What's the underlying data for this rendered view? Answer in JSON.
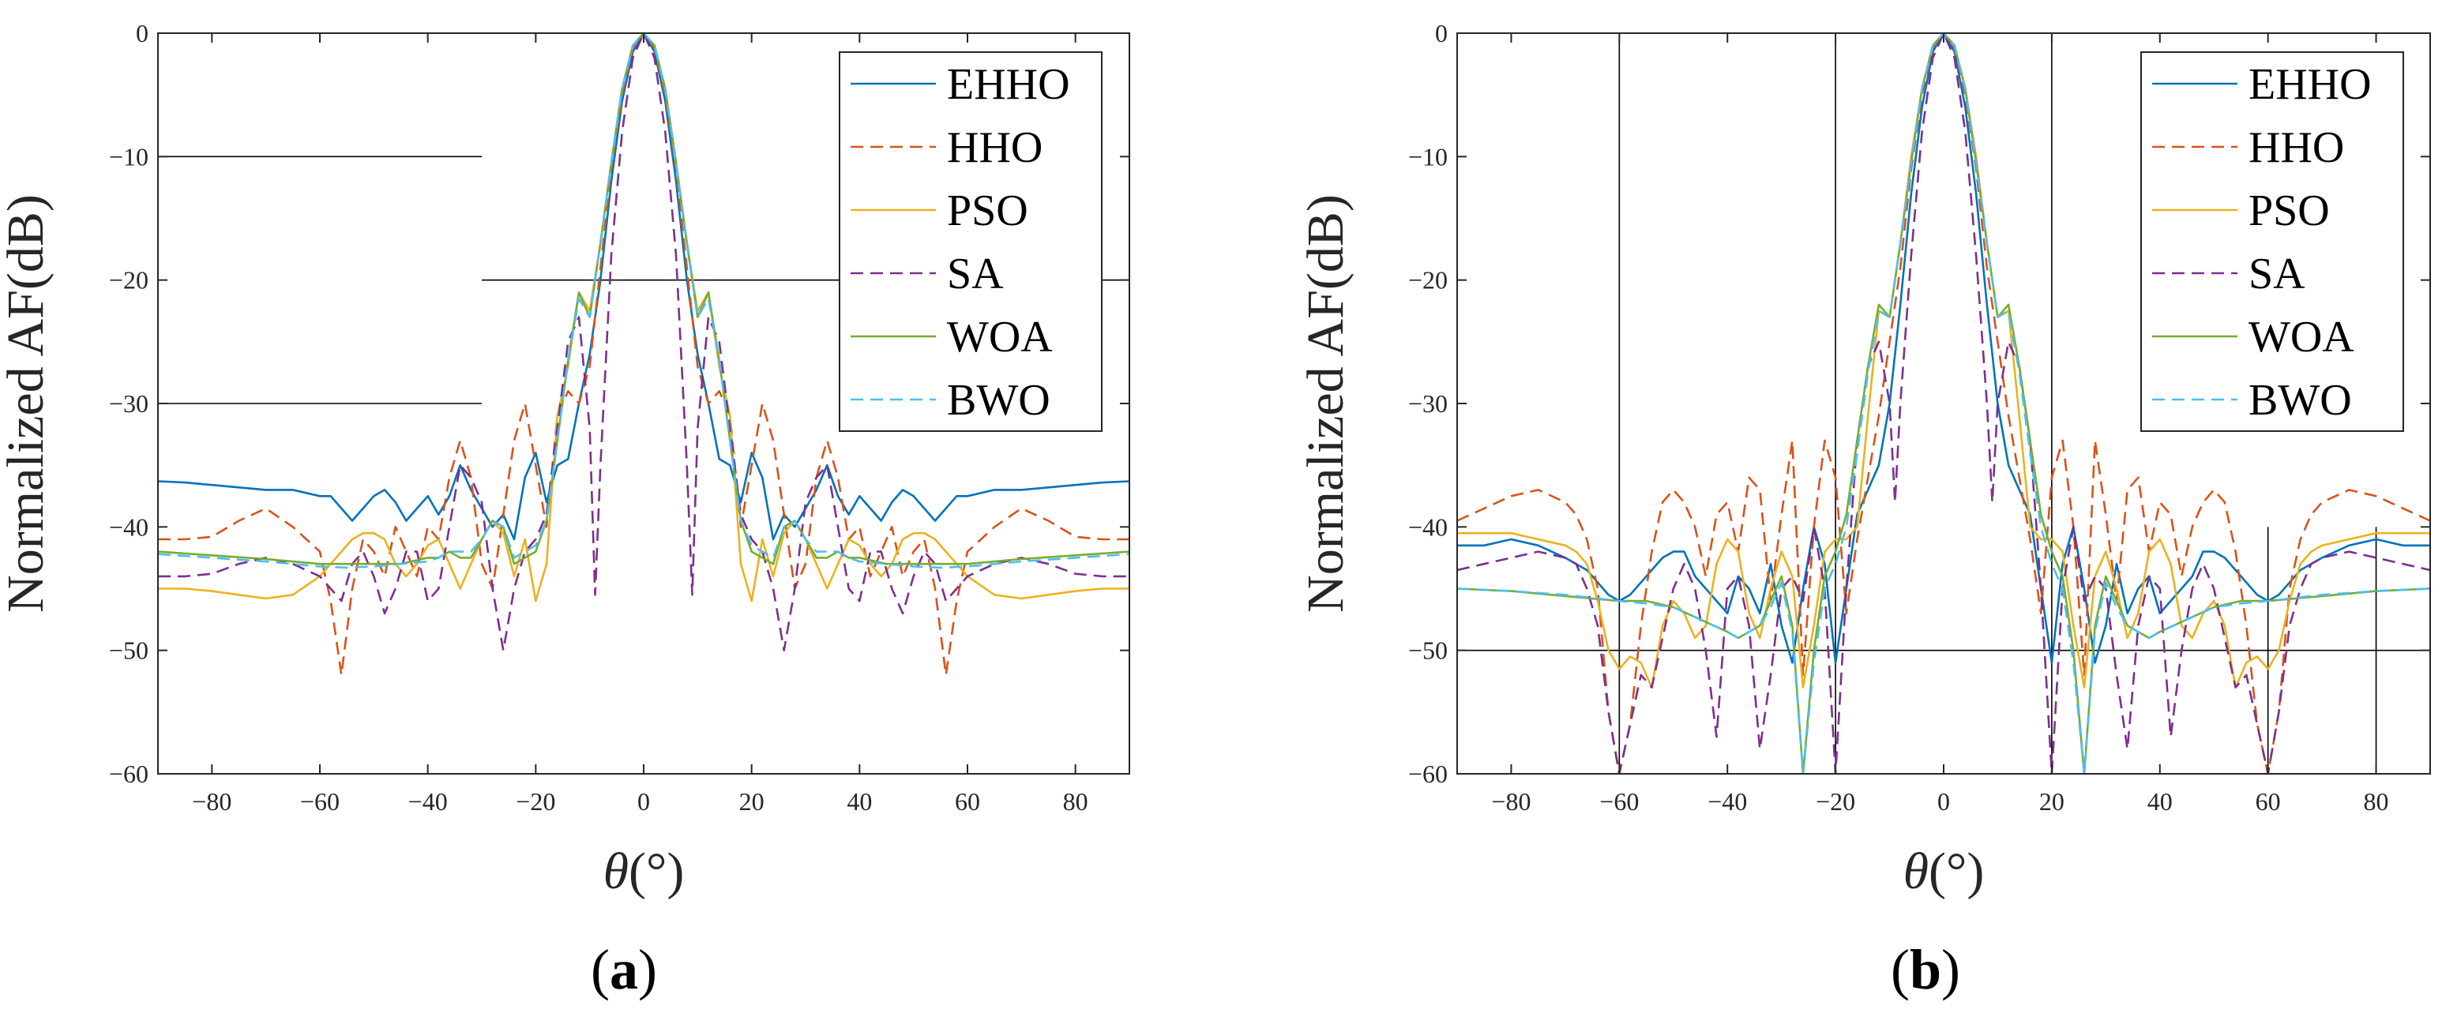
{
  "figure": {
    "panels": [
      {
        "label_open": "(",
        "label_letter": "a",
        "label_close": ")"
      },
      {
        "label_open": "(",
        "label_letter": "b",
        "label_close": ")"
      }
    ]
  },
  "chart_data": [
    {
      "type": "line",
      "panel": "a",
      "xlabel": "θ(°)",
      "ylabel": "Normalized AF(dB)",
      "xlim": [
        -90,
        90
      ],
      "ylim": [
        -60,
        0
      ],
      "xticks": [
        -80,
        -60,
        -40,
        -20,
        0,
        20,
        40,
        60,
        80
      ],
      "yticks": [
        0,
        -10,
        -20,
        -30,
        -40,
        -50,
        -60
      ],
      "legend_position": "top-right",
      "mask_lines": [
        {
          "x": [
            -90,
            -30
          ],
          "y": [
            -10,
            -10
          ]
        },
        {
          "x": [
            -30,
            90
          ],
          "y": [
            -20,
            -20
          ]
        },
        {
          "x": [
            -90,
            -30
          ],
          "y": [
            -30,
            -30
          ]
        }
      ],
      "series": [
        {
          "name": "EHHO",
          "color": "#0072BD",
          "dash": "solid",
          "symmetric": true,
          "x": [
            0,
            2,
            4,
            6,
            8,
            10,
            12,
            14,
            16,
            18,
            20,
            22,
            24,
            26,
            28,
            30,
            32,
            34,
            36,
            38,
            40,
            42,
            44,
            46,
            48,
            50,
            52,
            54,
            56,
            58,
            60,
            65,
            70,
            75,
            80,
            85,
            90
          ],
          "y": [
            0,
            -1.5,
            -5.5,
            -12,
            -20,
            -26,
            -30,
            -34.5,
            -35,
            -38,
            -34,
            -36,
            -41,
            -39,
            -40,
            -38.5,
            -37,
            -35,
            -37.5,
            -39,
            -37.5,
            -38.5,
            -39.5,
            -38,
            -37,
            -37.5,
            -38.5,
            -39.5,
            -38.5,
            -37.5,
            -37.5,
            -37,
            -37,
            -36.8,
            -36.6,
            -36.4,
            -36.3
          ]
        },
        {
          "name": "HHO",
          "color": "#D95319",
          "dash": "dashed",
          "symmetric": true,
          "x": [
            0,
            2,
            4,
            6,
            8,
            10,
            12,
            14,
            16,
            18,
            20,
            22,
            24,
            26,
            28,
            30,
            32,
            34,
            36,
            38,
            40,
            42,
            44,
            46,
            48,
            50,
            52,
            54,
            56,
            58,
            60,
            65,
            70,
            75,
            80,
            85,
            90
          ],
          "y": [
            0,
            -1.2,
            -5,
            -11,
            -19,
            -27,
            -30,
            -29,
            -31,
            -40,
            -35,
            -30,
            -33,
            -39,
            -45,
            -43,
            -36,
            -33,
            -36,
            -41,
            -40,
            -44,
            -42,
            -40,
            -44,
            -42,
            -41,
            -45,
            -52,
            -46,
            -42,
            -40,
            -38.5,
            -39.5,
            -40.8,
            -41,
            -41
          ]
        },
        {
          "name": "PSO",
          "color": "#EDB120",
          "dash": "solid",
          "symmetric": true,
          "x": [
            0,
            2,
            4,
            6,
            8,
            10,
            12,
            14,
            16,
            18,
            20,
            22,
            24,
            26,
            28,
            30,
            32,
            34,
            36,
            38,
            40,
            42,
            44,
            46,
            48,
            50,
            52,
            54,
            56,
            58,
            60,
            65,
            70,
            75,
            80,
            85,
            90
          ],
          "y": [
            0,
            -1,
            -4.5,
            -10.5,
            -17,
            -22.5,
            -21,
            -27,
            -31,
            -43,
            -46,
            -41,
            -44,
            -40.5,
            -39.5,
            -41,
            -43,
            -45,
            -43,
            -41,
            -41.5,
            -43,
            -44,
            -43,
            -41,
            -40.5,
            -40.5,
            -41,
            -42,
            -43,
            -44,
            -45.5,
            -45.8,
            -45.5,
            -45.2,
            -45,
            -45
          ]
        },
        {
          "name": "SA",
          "color": "#7E2F8E",
          "dash": "dashed",
          "symmetric": true,
          "x": [
            0,
            2,
            4,
            6,
            8,
            9,
            10,
            12,
            14,
            16,
            18,
            20,
            22,
            24,
            26,
            28,
            30,
            32,
            34,
            36,
            38,
            40,
            42,
            44,
            46,
            48,
            50,
            52,
            54,
            56,
            58,
            60,
            65,
            70,
            75,
            80,
            85,
            90
          ],
          "y": [
            0,
            -2,
            -8,
            -18,
            -35,
            -45.5,
            -32,
            -23,
            -25,
            -32,
            -39,
            -41,
            -42,
            -45,
            -50,
            -45,
            -38,
            -36,
            -35,
            -40,
            -45,
            -46,
            -42,
            -42,
            -45,
            -47,
            -44,
            -42,
            -43,
            -46,
            -45,
            -44,
            -43,
            -42.5,
            -43,
            -43.8,
            -44,
            -44
          ]
        },
        {
          "name": "WOA",
          "color": "#77AC30",
          "dash": "solid",
          "symmetric": true,
          "x": [
            0,
            2,
            4,
            6,
            8,
            10,
            12,
            14,
            16,
            18,
            20,
            22,
            24,
            26,
            28,
            30,
            32,
            34,
            36,
            38,
            40,
            45,
            50,
            55,
            60,
            70,
            80,
            90
          ],
          "y": [
            0,
            -1,
            -4.5,
            -10.5,
            -17,
            -23,
            -21,
            -26.5,
            -33,
            -39.5,
            -42,
            -42.5,
            -43,
            -40,
            -39.5,
            -41,
            -42.5,
            -42.5,
            -42,
            -42.5,
            -42.5,
            -43,
            -43,
            -43,
            -43,
            -42.6,
            -42.3,
            -42
          ]
        },
        {
          "name": "BWO",
          "color": "#4DBEEE",
          "dash": "dashed",
          "symmetric": true,
          "x": [
            0,
            2,
            4,
            6,
            8,
            10,
            12,
            14,
            16,
            18,
            20,
            22,
            24,
            26,
            28,
            30,
            32,
            34,
            36,
            38,
            40,
            45,
            50,
            55,
            60,
            70,
            80,
            90
          ],
          "y": [
            0,
            -1,
            -4.5,
            -10.5,
            -17,
            -23,
            -21.5,
            -26.5,
            -33,
            -39.5,
            -41.5,
            -42,
            -42.5,
            -40,
            -39.5,
            -41,
            -42,
            -42,
            -42,
            -42.5,
            -42.8,
            -43,
            -43.2,
            -43.3,
            -43.2,
            -42.8,
            -42.5,
            -42.2
          ]
        }
      ]
    },
    {
      "type": "line",
      "panel": "b",
      "xlabel": "θ(°)",
      "ylabel": "Normalized AF(dB)",
      "xlim": [
        -90,
        90
      ],
      "ylim": [
        -60,
        0
      ],
      "xticks": [
        -80,
        -60,
        -40,
        -20,
        0,
        20,
        40,
        60,
        80
      ],
      "yticks": [
        0,
        -10,
        -20,
        -30,
        -40,
        -50,
        -60
      ],
      "legend_position": "top-right",
      "mask_lines": [
        {
          "x": [
            -90,
            90
          ],
          "y": [
            -50,
            -50
          ]
        },
        {
          "x": [
            -60,
            -60
          ],
          "y": [
            0,
            -60
          ]
        },
        {
          "x": [
            -20,
            -20
          ],
          "y": [
            0,
            -60
          ]
        },
        {
          "x": [
            20,
            20
          ],
          "y": [
            0,
            -60
          ]
        },
        {
          "x": [
            60,
            60
          ],
          "y": [
            -40,
            -60
          ]
        },
        {
          "x": [
            80,
            80
          ],
          "y": [
            -40,
            -60
          ]
        }
      ],
      "series": [
        {
          "name": "EHHO",
          "color": "#0072BD",
          "dash": "solid",
          "symmetric": true,
          "x": [
            0,
            2,
            4,
            6,
            8,
            10,
            12,
            14,
            16,
            18,
            20,
            22,
            24,
            26,
            28,
            30,
            32,
            34,
            36,
            38,
            40,
            42,
            44,
            46,
            48,
            50,
            52,
            54,
            56,
            58,
            60,
            62,
            64,
            66,
            68,
            70,
            75,
            80,
            85,
            90
          ],
          "y": [
            0,
            -1.5,
            -6,
            -13,
            -22,
            -30,
            -35,
            -37,
            -39,
            -45,
            -51,
            -43,
            -40,
            -45,
            -51,
            -48,
            -43,
            -47,
            -45,
            -44,
            -47,
            -46,
            -45,
            -44,
            -42,
            -42,
            -42.5,
            -43.5,
            -44.5,
            -45.5,
            -46,
            -45.5,
            -44.5,
            -43.5,
            -43,
            -42.5,
            -41.5,
            -41,
            -41.5,
            -41.5
          ]
        },
        {
          "name": "HHO",
          "color": "#D95319",
          "dash": "dashed",
          "symmetric": true,
          "x": [
            0,
            2,
            4,
            6,
            8,
            10,
            12,
            14,
            16,
            18,
            20,
            22,
            24,
            26,
            28,
            30,
            32,
            34,
            36,
            38,
            40,
            42,
            44,
            46,
            48,
            50,
            52,
            54,
            56,
            58,
            60,
            62,
            64,
            66,
            68,
            70,
            75,
            80,
            85,
            90
          ],
          "y": [
            0,
            -1.2,
            -5,
            -11,
            -19,
            -25,
            -31,
            -36,
            -41,
            -47,
            -36,
            -33,
            -40,
            -52,
            -33,
            -39,
            -46,
            -37,
            -36,
            -42,
            -38,
            -39,
            -44,
            -40,
            -38,
            -37,
            -38,
            -42,
            -48,
            -56,
            -60,
            -55,
            -45,
            -41,
            -39,
            -38,
            -37,
            -37.5,
            -38.5,
            -39.5
          ]
        },
        {
          "name": "PSO",
          "color": "#EDB120",
          "dash": "solid",
          "symmetric": true,
          "x": [
            0,
            2,
            4,
            6,
            8,
            10,
            12,
            14,
            16,
            18,
            20,
            22,
            24,
            26,
            28,
            30,
            32,
            34,
            36,
            38,
            40,
            42,
            44,
            46,
            48,
            50,
            52,
            54,
            56,
            58,
            60,
            62,
            64,
            66,
            68,
            70,
            75,
            80,
            85,
            90
          ],
          "y": [
            0,
            -1,
            -4.5,
            -10,
            -17,
            -23,
            -22.5,
            -31,
            -40,
            -41,
            -41,
            -42,
            -48,
            -53,
            -44,
            -42,
            -45,
            -49,
            -47,
            -42,
            -41,
            -43,
            -48,
            -49,
            -47,
            -46,
            -48,
            -53,
            -51,
            -50.5,
            -51.5,
            -50,
            -46,
            -43,
            -42,
            -41.5,
            -41,
            -40.5,
            -40.5,
            -40.5
          ]
        },
        {
          "name": "SA",
          "color": "#7E2F8E",
          "dash": "dashed",
          "symmetric": true,
          "x": [
            0,
            2,
            4,
            6,
            8,
            9,
            10,
            12,
            14,
            16,
            18,
            20,
            22,
            24,
            26,
            28,
            30,
            32,
            34,
            36,
            38,
            40,
            42,
            44,
            46,
            48,
            50,
            52,
            54,
            56,
            58,
            60,
            62,
            64,
            66,
            68,
            70,
            75,
            80,
            85,
            90
          ],
          "y": [
            0,
            -2,
            -8,
            -18,
            -30,
            -38,
            -30,
            -25,
            -27,
            -33,
            -45,
            -60,
            -45,
            -40,
            -46,
            -44,
            -45,
            -52,
            -58,
            -48,
            -44,
            -45,
            -57,
            -50,
            -45,
            -43,
            -45,
            -49,
            -53,
            -52,
            -56,
            -60,
            -55,
            -48,
            -45,
            -43,
            -42.5,
            -42,
            -42.5,
            -43,
            -43.5
          ]
        },
        {
          "name": "WOA",
          "color": "#77AC30",
          "dash": "solid",
          "symmetric": true,
          "x": [
            0,
            2,
            4,
            6,
            8,
            10,
            12,
            14,
            16,
            18,
            20,
            22,
            24,
            26,
            28,
            30,
            32,
            34,
            36,
            38,
            40,
            45,
            50,
            55,
            60,
            70,
            80,
            90
          ],
          "y": [
            0,
            -1,
            -4.5,
            -10.5,
            -17,
            -23,
            -22,
            -27,
            -33,
            -39,
            -42,
            -44,
            -50,
            -60,
            -48,
            -44,
            -46,
            -48,
            -48.5,
            -49,
            -48.5,
            -47.5,
            -46.5,
            -46,
            -46,
            -45.6,
            -45.2,
            -45
          ]
        },
        {
          "name": "BWO",
          "color": "#4DBEEE",
          "dash": "dashed",
          "symmetric": true,
          "x": [
            0,
            2,
            4,
            6,
            8,
            10,
            12,
            14,
            16,
            18,
            20,
            22,
            24,
            26,
            28,
            30,
            32,
            34,
            36,
            38,
            40,
            45,
            50,
            55,
            60,
            70,
            80,
            90
          ],
          "y": [
            0,
            -1,
            -4.5,
            -10.5,
            -17,
            -23,
            -22.5,
            -27.5,
            -34,
            -40,
            -43,
            -45,
            -51,
            -60,
            -48.5,
            -44.5,
            -46.5,
            -48,
            -48.5,
            -49,
            -48.5,
            -47.5,
            -46.5,
            -46.2,
            -46,
            -45.5,
            -45.2,
            -45
          ]
        }
      ]
    }
  ]
}
